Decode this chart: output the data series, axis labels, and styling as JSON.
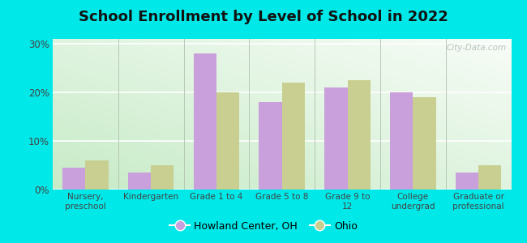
{
  "title": "School Enrollment by Level of School in 2022",
  "categories": [
    "Nursery,\npreschool",
    "Kindergarten",
    "Grade 1 to 4",
    "Grade 5 to 8",
    "Grade 9 to\n12",
    "College\nundergrad",
    "Graduate or\nprofessional"
  ],
  "howland_values": [
    4.5,
    3.5,
    28.0,
    18.0,
    21.0,
    20.0,
    3.5
  ],
  "ohio_values": [
    6.0,
    5.0,
    20.0,
    22.0,
    22.5,
    19.0,
    5.0
  ],
  "howland_color": "#c9a0dc",
  "ohio_color": "#c8cf90",
  "background_outer": "#00e8e8",
  "background_inner_tl": "#f0faf0",
  "background_inner_br": "#c8e8c0",
  "ylim": [
    0,
    31
  ],
  "yticks": [
    0,
    10,
    20,
    30
  ],
  "ytick_labels": [
    "0%",
    "10%",
    "20%",
    "30%"
  ],
  "legend_howland": "Howland Center, OH",
  "legend_ohio": "Ohio",
  "title_fontsize": 13,
  "watermark": "City-Data.com"
}
